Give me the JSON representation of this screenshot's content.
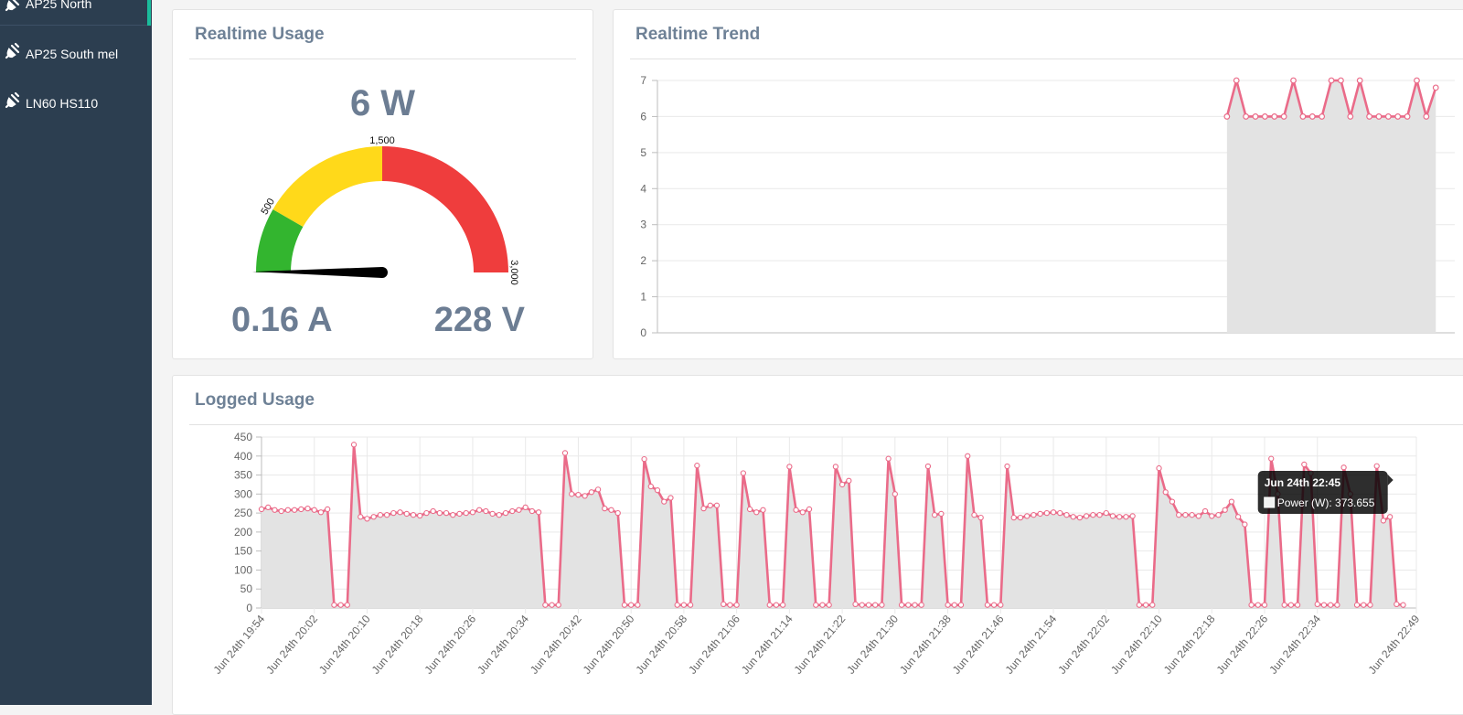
{
  "sidebar": {
    "items": [
      {
        "label": "AP25 North",
        "icon": "plug-icon"
      },
      {
        "label": "AP25 South mel",
        "icon": "plug-icon"
      },
      {
        "label": "LN60 HS110",
        "icon": "plug-icon"
      }
    ]
  },
  "realtime_usage": {
    "title": "Realtime Usage",
    "power": "6 W",
    "current": "0.16 A",
    "voltage": "228 V",
    "gauge": {
      "min": 0,
      "max": 3000,
      "value": 6,
      "ranges": [
        {
          "from": 0,
          "to": 500,
          "color": "#33b52f"
        },
        {
          "from": 500,
          "to": 1500,
          "color": "#ffd91a"
        },
        {
          "from": 1500,
          "to": 3000,
          "color": "#ef3d3d"
        }
      ],
      "tick_labels": [
        "500",
        "1,500",
        "3,000"
      ]
    }
  },
  "realtime_trend": {
    "title": "Realtime Trend",
    "chart_data": {
      "type": "area",
      "ylim": [
        0,
        7
      ],
      "y_ticks": [
        0,
        1,
        2,
        3,
        4,
        5,
        6,
        7
      ],
      "x_count": 85,
      "x_start_index": 60,
      "values": [
        6,
        7,
        6,
        6,
        6,
        6,
        6,
        7,
        6,
        6,
        6,
        7,
        7,
        6,
        7,
        6,
        6,
        6,
        6,
        6,
        7,
        6,
        6.8
      ],
      "series_color": "#ea6b89",
      "fill_color": "#e3e3e3",
      "grid": true
    }
  },
  "logged_usage": {
    "title": "Logged Usage",
    "chart_data": {
      "type": "area",
      "series": [
        {
          "name": "Power (W)"
        }
      ],
      "ylim": [
        0,
        450
      ],
      "y_ticks": [
        0,
        50,
        100,
        150,
        200,
        250,
        300,
        350,
        400,
        450
      ],
      "x_ticks": [
        "Jun 24th 19:54",
        "Jun 24th 20:02",
        "Jun 24th 20:10",
        "Jun 24th 20:18",
        "Jun 24th 20:26",
        "Jun 24th 20:34",
        "Jun 24th 20:42",
        "Jun 24th 20:50",
        "Jun 24th 20:58",
        "Jun 24th 21:06",
        "Jun 24th 21:14",
        "Jun 24th 21:22",
        "Jun 24th 21:30",
        "Jun 24th 21:38",
        "Jun 24th 21:46",
        "Jun 24th 21:54",
        "Jun 24th 22:02",
        "Jun 24th 22:10",
        "Jun 24th 22:18",
        "Jun 24th 22:26",
        "Jun 24th 22:34",
        "Jun 24th 22:49"
      ],
      "x_minutes": [
        0,
        8,
        16,
        24,
        32,
        40,
        48,
        56,
        64,
        72,
        80,
        88,
        96,
        104,
        112,
        120,
        128,
        136,
        144,
        152,
        160,
        175
      ],
      "x_range_minutes": [
        0,
        175
      ],
      "points": [
        [
          0,
          260
        ],
        [
          1,
          265
        ],
        [
          2,
          258
        ],
        [
          3,
          255
        ],
        [
          4,
          258
        ],
        [
          5,
          258
        ],
        [
          6,
          260
        ],
        [
          7,
          262
        ],
        [
          8,
          258
        ],
        [
          9,
          252
        ],
        [
          10,
          260
        ],
        [
          11,
          8
        ],
        [
          12,
          8
        ],
        [
          13,
          8
        ],
        [
          14,
          430
        ],
        [
          15,
          240
        ],
        [
          16,
          235
        ],
        [
          17,
          240
        ],
        [
          18,
          245
        ],
        [
          19,
          245
        ],
        [
          20,
          250
        ],
        [
          21,
          252
        ],
        [
          22,
          248
        ],
        [
          23,
          245
        ],
        [
          24,
          243
        ],
        [
          25,
          250
        ],
        [
          26,
          255
        ],
        [
          27,
          250
        ],
        [
          28,
          250
        ],
        [
          29,
          245
        ],
        [
          30,
          248
        ],
        [
          31,
          250
        ],
        [
          32,
          252
        ],
        [
          33,
          258
        ],
        [
          34,
          255
        ],
        [
          35,
          248
        ],
        [
          36,
          245
        ],
        [
          37,
          250
        ],
        [
          38,
          255
        ],
        [
          39,
          258
        ],
        [
          40,
          265
        ],
        [
          41,
          255
        ],
        [
          42,
          252
        ],
        [
          43,
          8
        ],
        [
          44,
          8
        ],
        [
          45,
          8
        ],
        [
          46,
          408
        ],
        [
          47,
          300
        ],
        [
          48,
          298
        ],
        [
          49,
          295
        ],
        [
          50,
          305
        ],
        [
          51,
          312
        ],
        [
          52,
          262
        ],
        [
          53,
          258
        ],
        [
          54,
          250
        ],
        [
          55,
          8
        ],
        [
          56,
          8
        ],
        [
          57,
          8
        ],
        [
          58,
          392
        ],
        [
          59,
          320
        ],
        [
          60,
          310
        ],
        [
          61,
          280
        ],
        [
          62,
          290
        ],
        [
          63,
          8
        ],
        [
          64,
          8
        ],
        [
          65,
          8
        ],
        [
          66,
          375
        ],
        [
          67,
          262
        ],
        [
          68,
          270
        ],
        [
          69,
          270
        ],
        [
          70,
          10
        ],
        [
          71,
          8
        ],
        [
          72,
          8
        ],
        [
          73,
          355
        ],
        [
          74,
          260
        ],
        [
          75,
          252
        ],
        [
          76,
          258
        ],
        [
          77,
          8
        ],
        [
          78,
          8
        ],
        [
          79,
          8
        ],
        [
          80,
          372
        ],
        [
          81,
          258
        ],
        [
          82,
          252
        ],
        [
          83,
          260
        ],
        [
          84,
          8
        ],
        [
          85,
          8
        ],
        [
          86,
          8
        ],
        [
          87,
          372
        ],
        [
          88,
          325
        ],
        [
          89,
          335
        ],
        [
          90,
          10
        ],
        [
          91,
          8
        ],
        [
          92,
          8
        ],
        [
          93,
          8
        ],
        [
          94,
          8
        ],
        [
          95,
          393
        ],
        [
          96,
          300
        ],
        [
          97,
          8
        ],
        [
          98,
          8
        ],
        [
          99,
          8
        ],
        [
          100,
          8
        ],
        [
          101,
          373
        ],
        [
          102,
          245
        ],
        [
          103,
          248
        ],
        [
          104,
          8
        ],
        [
          105,
          8
        ],
        [
          106,
          8
        ],
        [
          107,
          400
        ],
        [
          108,
          245
        ],
        [
          109,
          238
        ],
        [
          110,
          8
        ],
        [
          111,
          8
        ],
        [
          112,
          8
        ],
        [
          113,
          373
        ],
        [
          114,
          238
        ],
        [
          115,
          238
        ],
        [
          116,
          242
        ],
        [
          117,
          245
        ],
        [
          118,
          248
        ],
        [
          119,
          250
        ],
        [
          120,
          252
        ],
        [
          121,
          250
        ],
        [
          122,
          245
        ],
        [
          123,
          240
        ],
        [
          124,
          238
        ],
        [
          125,
          242
        ],
        [
          126,
          245
        ],
        [
          127,
          245
        ],
        [
          128,
          250
        ],
        [
          129,
          242
        ],
        [
          130,
          240
        ],
        [
          131,
          240
        ],
        [
          132,
          242
        ],
        [
          133,
          8
        ],
        [
          134,
          8
        ],
        [
          135,
          8
        ],
        [
          136,
          368
        ],
        [
          137,
          305
        ],
        [
          138,
          280
        ],
        [
          139,
          245
        ],
        [
          140,
          245
        ],
        [
          141,
          245
        ],
        [
          142,
          242
        ],
        [
          143,
          255
        ],
        [
          144,
          242
        ],
        [
          145,
          245
        ],
        [
          146,
          258
        ],
        [
          147,
          280
        ],
        [
          148,
          240
        ],
        [
          149,
          220
        ],
        [
          150,
          8
        ],
        [
          151,
          8
        ],
        [
          152,
          8
        ],
        [
          153,
          393
        ],
        [
          154,
          300
        ],
        [
          155,
          8
        ],
        [
          156,
          8
        ],
        [
          157,
          8
        ],
        [
          158,
          378
        ],
        [
          159,
          355
        ],
        [
          160,
          10
        ],
        [
          161,
          8
        ],
        [
          162,
          8
        ],
        [
          163,
          8
        ],
        [
          164,
          370
        ],
        [
          165,
          300
        ],
        [
          166,
          8
        ],
        [
          167,
          8
        ],
        [
          168,
          8
        ],
        [
          169,
          373.655
        ],
        [
          170,
          230
        ],
        [
          171,
          240
        ],
        [
          172,
          10
        ],
        [
          173,
          8
        ]
      ],
      "series_color": "#ea6b89",
      "fill_color": "#e3e3e3",
      "grid": true
    },
    "tooltip": {
      "title": "Jun 24th 22:45",
      "label": "Power (W): 373.655",
      "minute": 169
    }
  }
}
